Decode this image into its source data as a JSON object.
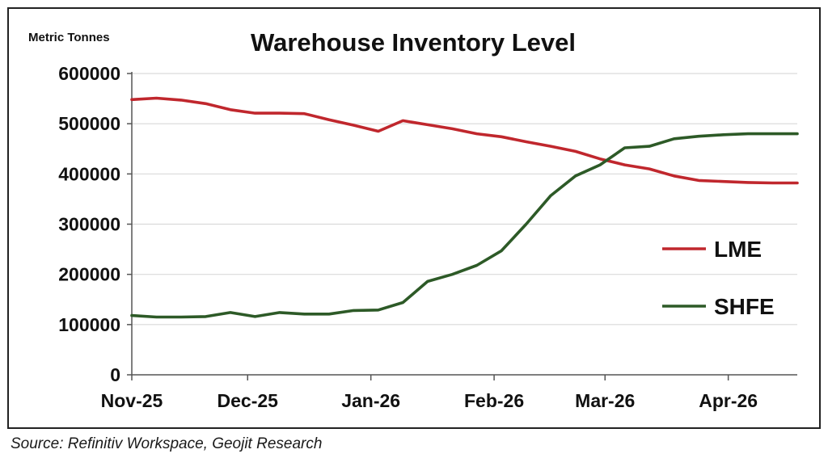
{
  "chart_data": {
    "type": "line",
    "title": "Warehouse Inventory Level",
    "ylabel": "Metric Tonnes",
    "xlabel": "",
    "ylim": [
      0,
      600000
    ],
    "y_ticks": [
      0,
      100000,
      200000,
      300000,
      400000,
      500000,
      600000
    ],
    "y_tick_labels": [
      "0",
      "100000",
      "200000",
      "300000",
      "400000",
      "500000",
      "600000"
    ],
    "x_range": [
      0,
      27
    ],
    "x_ticks": [
      {
        "label": "Nov-25",
        "x": 0
      },
      {
        "label": "Dec-25",
        "x": 4.7
      },
      {
        "label": "Jan-26",
        "x": 9.7
      },
      {
        "label": "Feb-26",
        "x": 14.7
      },
      {
        "label": "Mar-26",
        "x": 19.2
      },
      {
        "label": "Apr-26",
        "x": 24.2
      }
    ],
    "grid": true,
    "legend_position": "right",
    "series": [
      {
        "name": "LME",
        "color": "#c0272d",
        "x": [
          0,
          1,
          2,
          3,
          4,
          5,
          6,
          7,
          8,
          9,
          10,
          11,
          12,
          13,
          14,
          15,
          16,
          17,
          18,
          19,
          20,
          21,
          22,
          23,
          24,
          25,
          26,
          27
        ],
        "values": [
          548000,
          551000,
          547000,
          540000,
          528000,
          521000,
          521000,
          520000,
          508000,
          497000,
          485000,
          506000,
          498000,
          490000,
          480000,
          474000,
          464000,
          455000,
          445000,
          430000,
          418000,
          410000,
          396000,
          387000,
          385000,
          383000,
          382000,
          382000
        ]
      },
      {
        "name": "SHFE",
        "color": "#2d5a27",
        "x": [
          0,
          1,
          2,
          3,
          4,
          5,
          6,
          7,
          8,
          9,
          10,
          11,
          12,
          13,
          14,
          15,
          16,
          17,
          18,
          19,
          20,
          21,
          22,
          23,
          24,
          25,
          26,
          27
        ],
        "values": [
          118000,
          115000,
          115000,
          116000,
          124000,
          116000,
          124000,
          121000,
          121000,
          128000,
          129000,
          144000,
          186000,
          200000,
          218000,
          247000,
          300000,
          357000,
          396000,
          418000,
          452000,
          455000,
          470000,
          475000,
          478000,
          480000,
          480000,
          480000
        ]
      }
    ]
  },
  "source_note": "Source: Refinitiv Workspace, Geojit Research"
}
